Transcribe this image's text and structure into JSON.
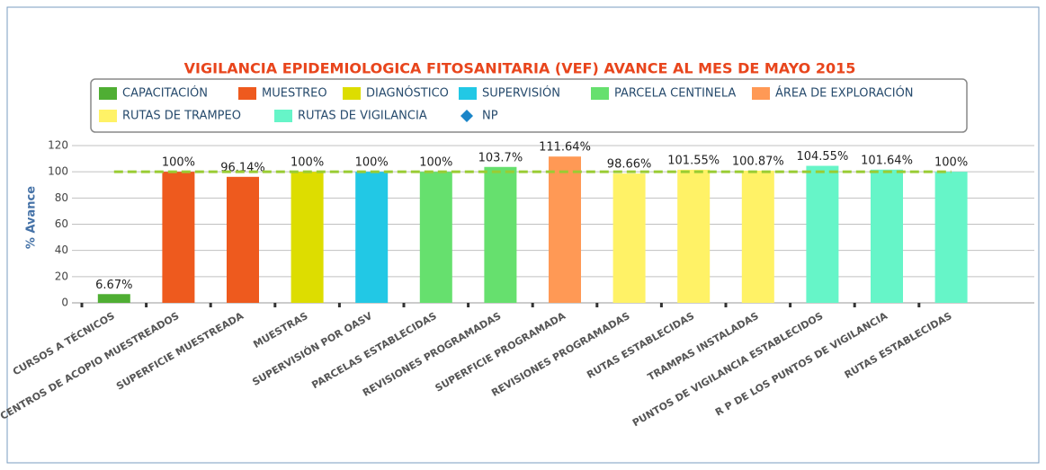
{
  "chart_data": {
    "type": "bar",
    "title": "VIGILANCIA EPIDEMIOLOGICA FITOSANITARIA (VEF) AVANCE AL MES DE MAYO 2015",
    "y_label": "% Avance",
    "categories": [
      "CURSOS A TÉCNICOS",
      "CENTROS DE ACOPIO MUESTREADOS",
      "SUPERFICIE MUESTREADA",
      "MUESTRAS",
      "SUPERVISIÓN POR OASV",
      "PARCELAS ESTABLECIDAS",
      "REVISIONES PROGRAMADAS",
      "SUPERFICIE PROGRAMADA",
      "REVISIONES PROGRAMADAS",
      "RUTAS ESTABLECIDAS",
      "TRAMPAS INSTALADAS",
      "PUNTOS DE VIGILANCIA ESTABLECIDOS",
      "R P DE LOS PUNTOS DE VIGILANCIA",
      "RUTAS ESTABLECIDAS"
    ],
    "series": [
      {
        "name": "CAPACITACIÓN",
        "color": "#4fae33",
        "values": [
          6.67,
          null,
          null,
          null,
          null,
          null,
          null,
          null,
          null,
          null,
          null,
          null,
          null,
          null
        ],
        "value_labels": [
          "6.67%",
          null,
          null,
          null,
          null,
          null,
          null,
          null,
          null,
          null,
          null,
          null,
          null,
          null
        ]
      },
      {
        "name": "MUESTREO",
        "color": "#ee5a1e",
        "values": [
          null,
          100,
          96.14,
          null,
          null,
          null,
          null,
          null,
          null,
          null,
          null,
          null,
          null,
          null
        ],
        "value_labels": [
          null,
          "100%",
          "96.14%",
          null,
          null,
          null,
          null,
          null,
          null,
          null,
          null,
          null,
          null,
          null
        ]
      },
      {
        "name": "DIAGNÓSTICO",
        "color": "#dddd00",
        "values": [
          null,
          null,
          null,
          100,
          null,
          null,
          null,
          null,
          null,
          null,
          null,
          null,
          null,
          null
        ],
        "value_labels": [
          null,
          null,
          null,
          "100%",
          null,
          null,
          null,
          null,
          null,
          null,
          null,
          null,
          null,
          null
        ]
      },
      {
        "name": "SUPERVISIÓN",
        "color": "#22c8e5",
        "values": [
          null,
          null,
          null,
          null,
          100,
          null,
          null,
          null,
          null,
          null,
          null,
          null,
          null,
          null
        ],
        "value_labels": [
          null,
          null,
          null,
          null,
          "100%",
          null,
          null,
          null,
          null,
          null,
          null,
          null,
          null,
          null
        ]
      },
      {
        "name": "PARCELA CENTINELA",
        "color": "#66e06e",
        "values": [
          null,
          null,
          null,
          null,
          null,
          100,
          103.7,
          null,
          null,
          null,
          null,
          null,
          null,
          null
        ],
        "value_labels": [
          null,
          null,
          null,
          null,
          null,
          "100%",
          "103.7%",
          null,
          null,
          null,
          null,
          null,
          null,
          null
        ]
      },
      {
        "name": "ÁREA DE EXPLORACIÓN",
        "color": "#ff9955",
        "values": [
          null,
          null,
          null,
          null,
          null,
          null,
          null,
          111.64,
          null,
          null,
          null,
          null,
          null,
          null
        ],
        "value_labels": [
          null,
          null,
          null,
          null,
          null,
          null,
          null,
          "111.64%",
          null,
          null,
          null,
          null,
          null,
          null
        ]
      },
      {
        "name": "RUTAS DE TRAMPEO",
        "color": "#fff266",
        "values": [
          null,
          null,
          null,
          null,
          null,
          null,
          null,
          null,
          98.66,
          101.55,
          100.87,
          null,
          null,
          null
        ],
        "value_labels": [
          null,
          null,
          null,
          null,
          null,
          null,
          null,
          null,
          "98.66%",
          "101.55%",
          "100.87%",
          null,
          null,
          null
        ]
      },
      {
        "name": "RUTAS DE VIGILANCIA",
        "color": "#66f5c8",
        "values": [
          null,
          null,
          null,
          null,
          null,
          null,
          null,
          null,
          null,
          null,
          null,
          104.55,
          101.64,
          100
        ],
        "value_labels": [
          null,
          null,
          null,
          null,
          null,
          null,
          null,
          null,
          null,
          null,
          null,
          "104.55%",
          "101.64%",
          "100%"
        ]
      },
      {
        "name": "NP",
        "color": "#1a85c8",
        "line_color": "#99cc33",
        "type": "line",
        "values": [
          100,
          100,
          100,
          100,
          100,
          100,
          100,
          100,
          100,
          100,
          100,
          100,
          100,
          100
        ]
      }
    ],
    "ylim": [
      0,
      120
    ],
    "yticks": [
      0,
      20,
      40,
      60,
      80,
      100,
      120
    ],
    "grid": true
  }
}
